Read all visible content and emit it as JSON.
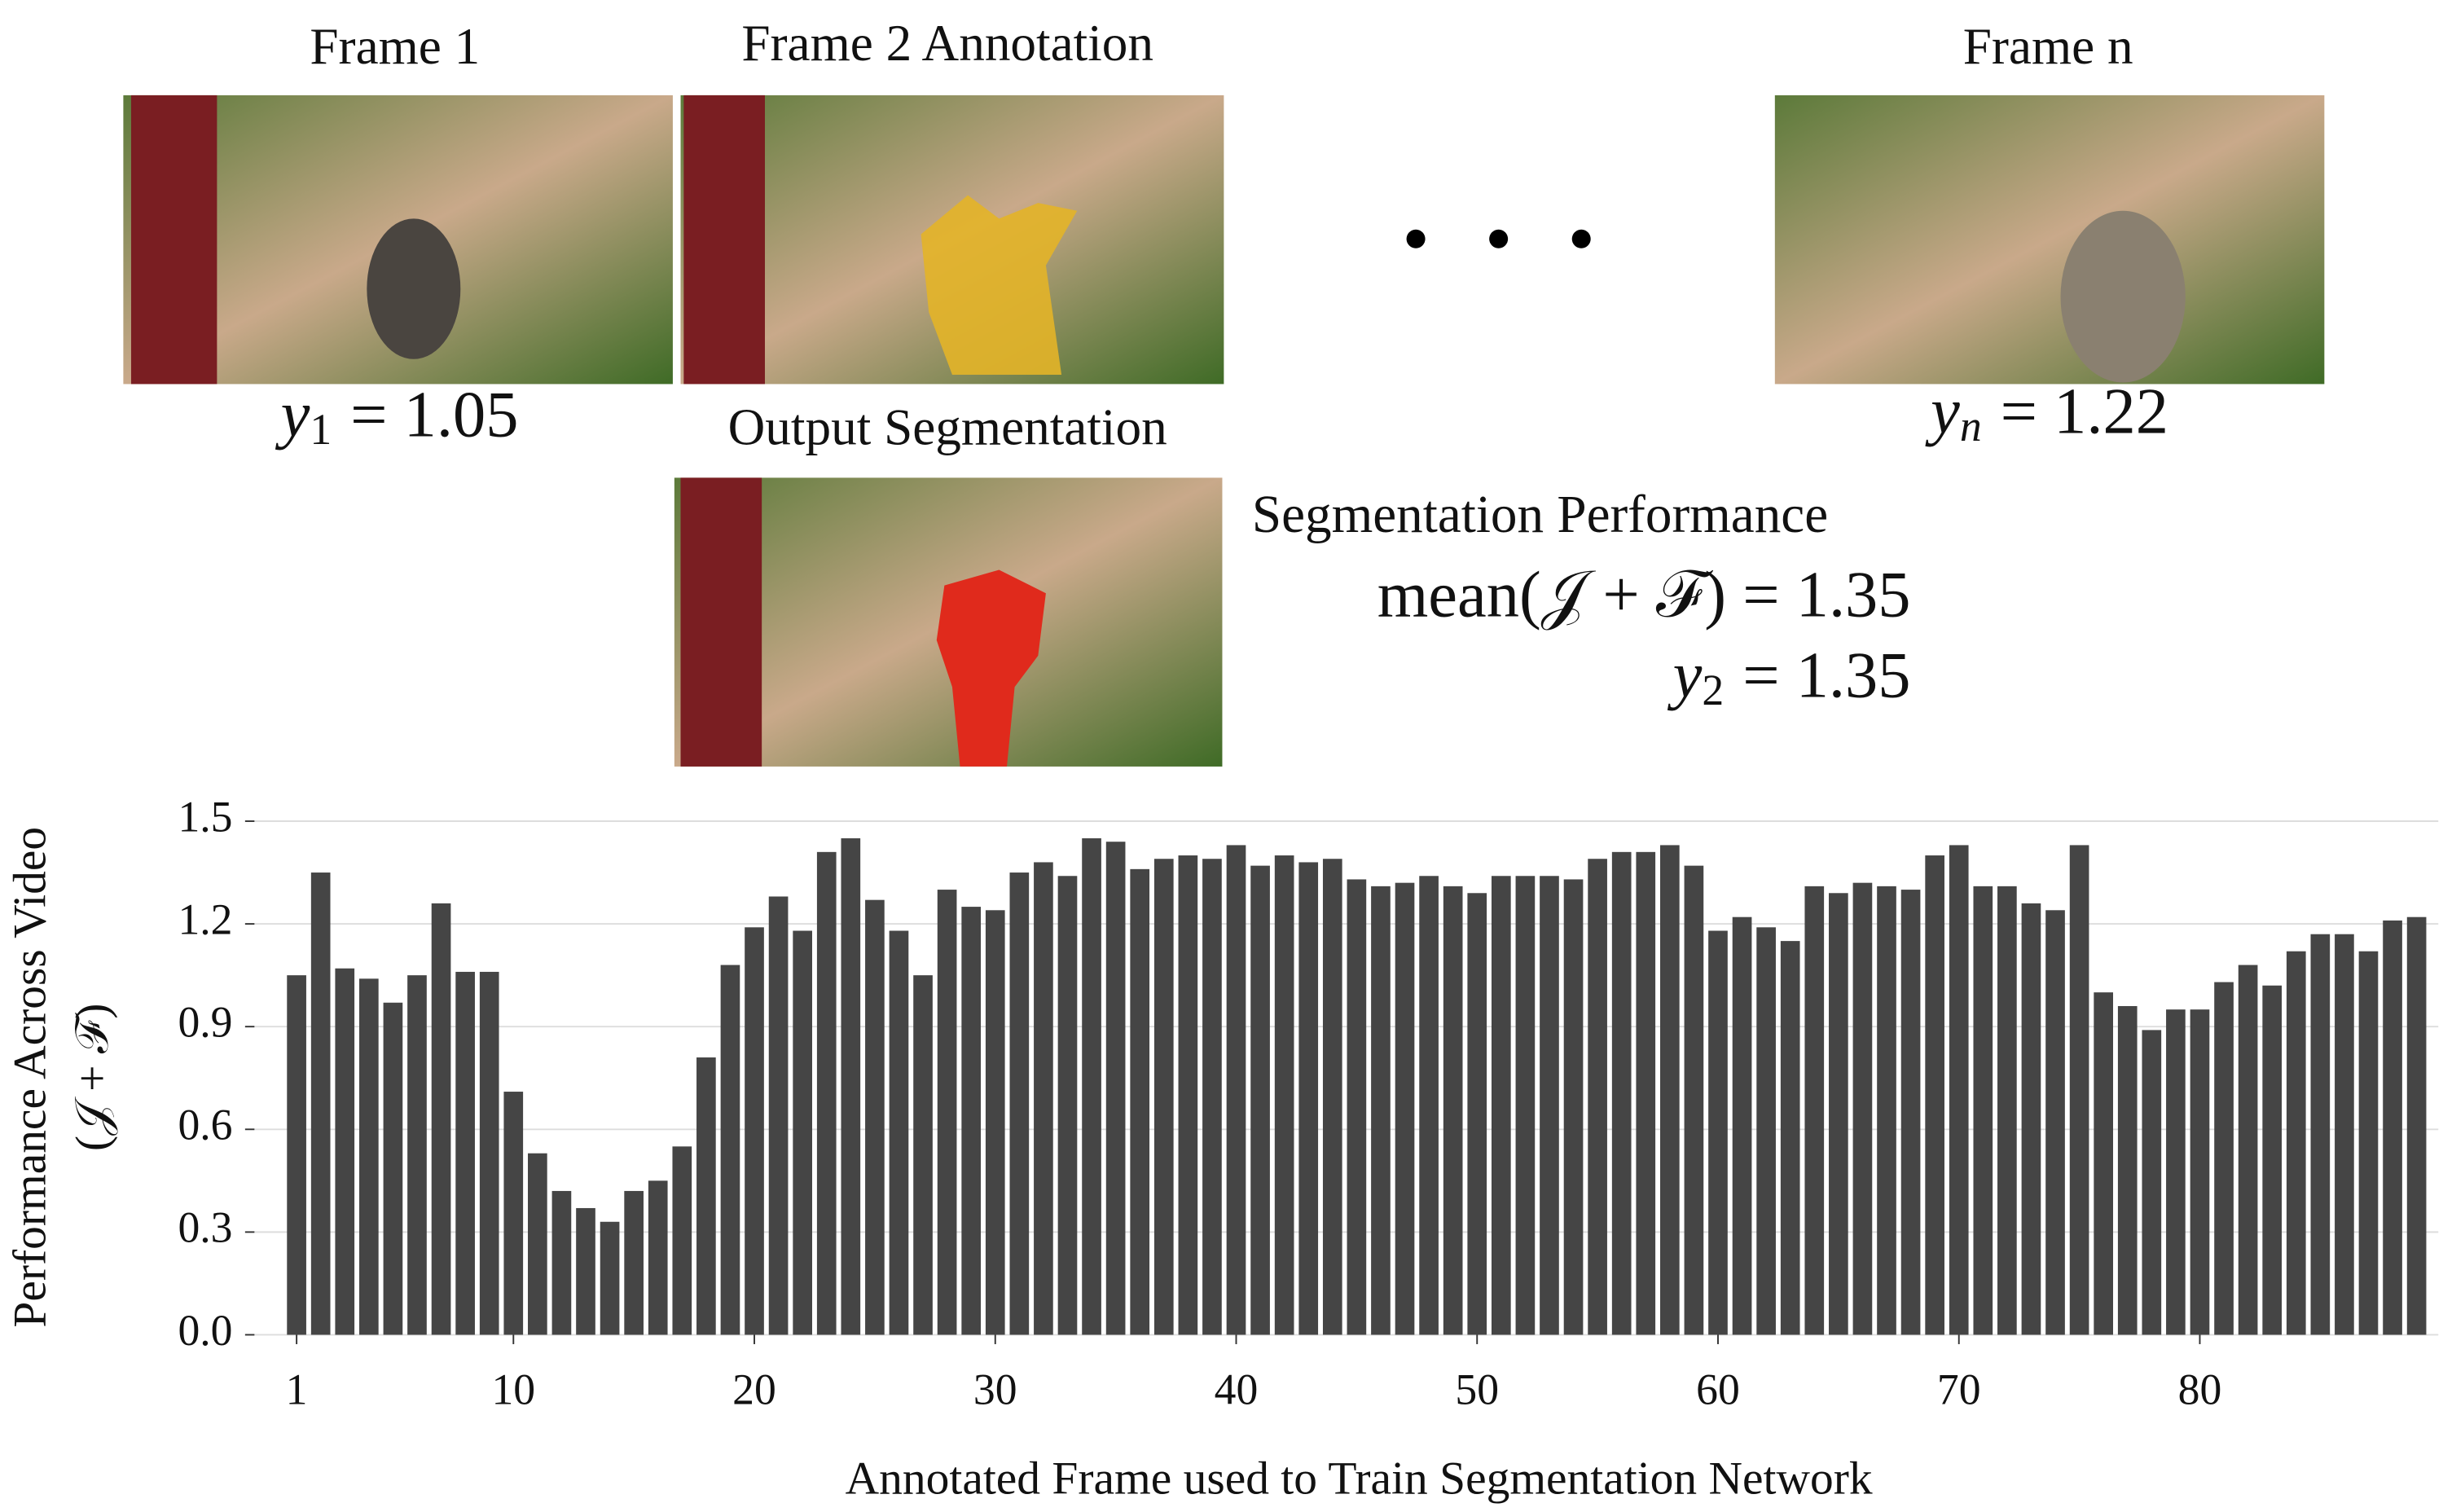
{
  "frames": [
    {
      "title": "Frame 1",
      "symbol": "y",
      "subscript": "1",
      "equation": "= 1.05"
    },
    {
      "title": "Frame 2 Annotation"
    },
    {
      "title": "Frame n",
      "symbol": "y",
      "subscript": "n",
      "equation": "= 1.22"
    }
  ],
  "output": {
    "title": "Output Segmentation",
    "heading": "Segmentation Performance",
    "mean": "mean(𝒥 + ℱ) = 1.35",
    "symbol": "y",
    "subscript": "2",
    "equation": "= 1.35"
  },
  "chart_data": {
    "type": "bar",
    "xlabel": "Annotated Frame used to Train Segmentation Network",
    "ylabel": [
      "Performance Across Video",
      "(𝒥 + ℱ)"
    ],
    "x": [
      1,
      2,
      3,
      4,
      5,
      6,
      7,
      8,
      9,
      10,
      11,
      12,
      13,
      14,
      15,
      16,
      17,
      18,
      19,
      20,
      21,
      22,
      23,
      24,
      25,
      26,
      27,
      28,
      29,
      30,
      31,
      32,
      33,
      34,
      35,
      36,
      37,
      38,
      39,
      40,
      41,
      42,
      43,
      44,
      45,
      46,
      47,
      48,
      49,
      50,
      51,
      52,
      53,
      54,
      55,
      56,
      57,
      58,
      59,
      60,
      61,
      62,
      63,
      64,
      65,
      66,
      67,
      68,
      69,
      70,
      71,
      72,
      73,
      74,
      75,
      76,
      77,
      78,
      79,
      80,
      81,
      82,
      83,
      84,
      85,
      86,
      87,
      88,
      89
    ],
    "values": [
      1.05,
      1.35,
      1.07,
      1.04,
      0.97,
      1.05,
      1.26,
      1.06,
      1.06,
      0.71,
      0.53,
      0.42,
      0.37,
      0.33,
      0.42,
      0.45,
      0.55,
      0.81,
      1.08,
      1.19,
      1.28,
      1.18,
      1.41,
      1.45,
      1.27,
      1.18,
      1.05,
      1.3,
      1.25,
      1.24,
      1.35,
      1.38,
      1.34,
      1.45,
      1.44,
      1.36,
      1.39,
      1.4,
      1.39,
      1.43,
      1.37,
      1.4,
      1.38,
      1.39,
      1.33,
      1.31,
      1.32,
      1.34,
      1.31,
      1.29,
      1.34,
      1.34,
      1.34,
      1.33,
      1.39,
      1.41,
      1.41,
      1.43,
      1.37,
      1.18,
      1.22,
      1.19,
      1.15,
      1.31,
      1.29,
      1.32,
      1.31,
      1.3,
      1.4,
      1.43,
      1.31,
      1.31,
      1.26,
      1.24,
      1.43,
      1.0,
      0.96,
      0.89,
      0.95,
      0.95,
      1.03,
      1.08,
      1.02,
      1.12,
      1.17,
      1.17,
      1.12,
      1.21,
      1.22
    ],
    "color": "#454545",
    "xlim": [
      -0.75,
      89.9
    ],
    "xticks": [
      1,
      10,
      20,
      30,
      40,
      50,
      60,
      70,
      80
    ],
    "ylim": [
      0,
      1.5
    ],
    "yticks": [
      {
        "value": 0,
        "label": "0.0"
      },
      0.3,
      0.6,
      0.9,
      1.2,
      1.5
    ],
    "grid": true
  }
}
